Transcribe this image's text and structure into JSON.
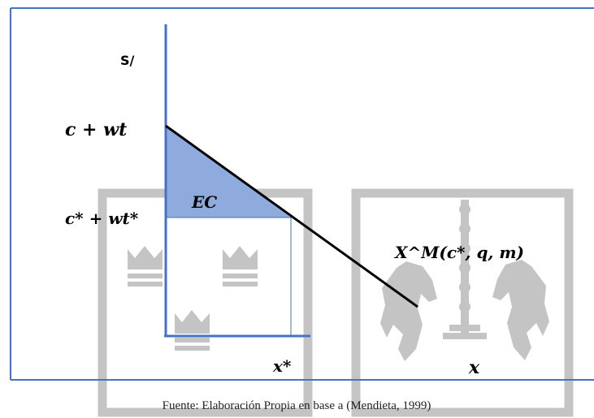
{
  "diagram": {
    "y_axis_label": "S/",
    "x_axis_label": "x",
    "x_star_label": "x*",
    "y_high_label": "c + wt",
    "y_low_label": "c* + wt*",
    "area_label": "EC",
    "demand_label": "X^M(c*, q, m)",
    "caption": "Fuente: Elaboración Propia en base a (Mendieta, 1999)"
  },
  "colors": {
    "frame": "#4472c4",
    "axis": "#4472c4",
    "demand_line": "#000000",
    "area_fill": "#8faadc",
    "watermark": "#bfbfbf"
  }
}
